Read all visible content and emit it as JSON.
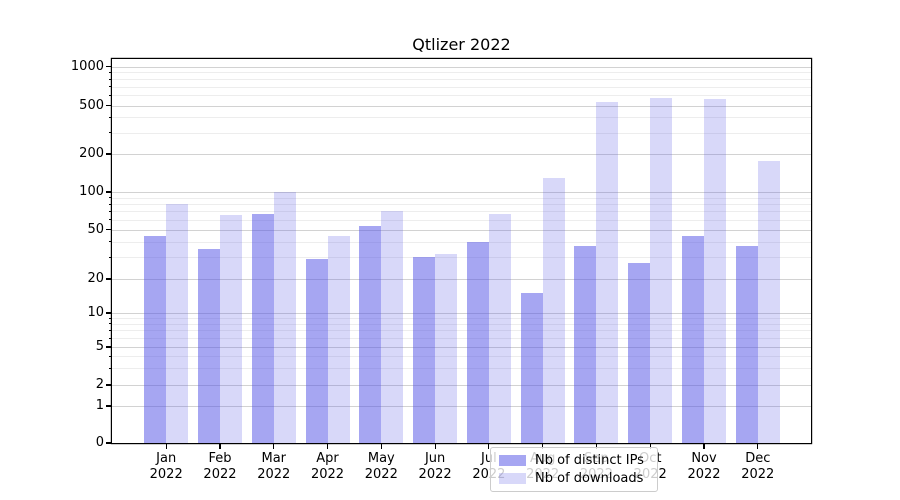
{
  "chart_data": {
    "type": "bar",
    "title": "Qtlizer 2022",
    "y_scale": "symlog",
    "ylim": [
      0,
      1000
    ],
    "grid": "major+minor",
    "legend_position": "lower center",
    "categories": [
      "Jan",
      "Feb",
      "Mar",
      "Apr",
      "May",
      "Jun",
      "Jul",
      "Aug",
      "Sep",
      "Oct",
      "Nov",
      "Dec"
    ],
    "x_tick_year": "2022",
    "y_ticks": [
      0,
      1,
      2,
      5,
      10,
      20,
      50,
      100,
      200,
      500,
      1000
    ],
    "y_minor_ticks": [
      3,
      4,
      6,
      7,
      8,
      9,
      30,
      40,
      60,
      70,
      80,
      90,
      300,
      400,
      600,
      700,
      800,
      900
    ],
    "series": [
      {
        "name": "Nb of distinct IPs",
        "slug": "distinct-ips",
        "color_rgba": "rgba(85,85,230,0.52)",
        "values": [
          44,
          35,
          67,
          29,
          53,
          30,
          40,
          15,
          37,
          27,
          44,
          37
        ]
      },
      {
        "name": "Nb of downloads",
        "slug": "downloads",
        "color_rgba": "rgba(85,85,230,0.23)",
        "values": [
          80,
          65,
          100,
          44,
          70,
          32,
          67,
          130,
          530,
          570,
          560,
          175
        ]
      }
    ]
  }
}
